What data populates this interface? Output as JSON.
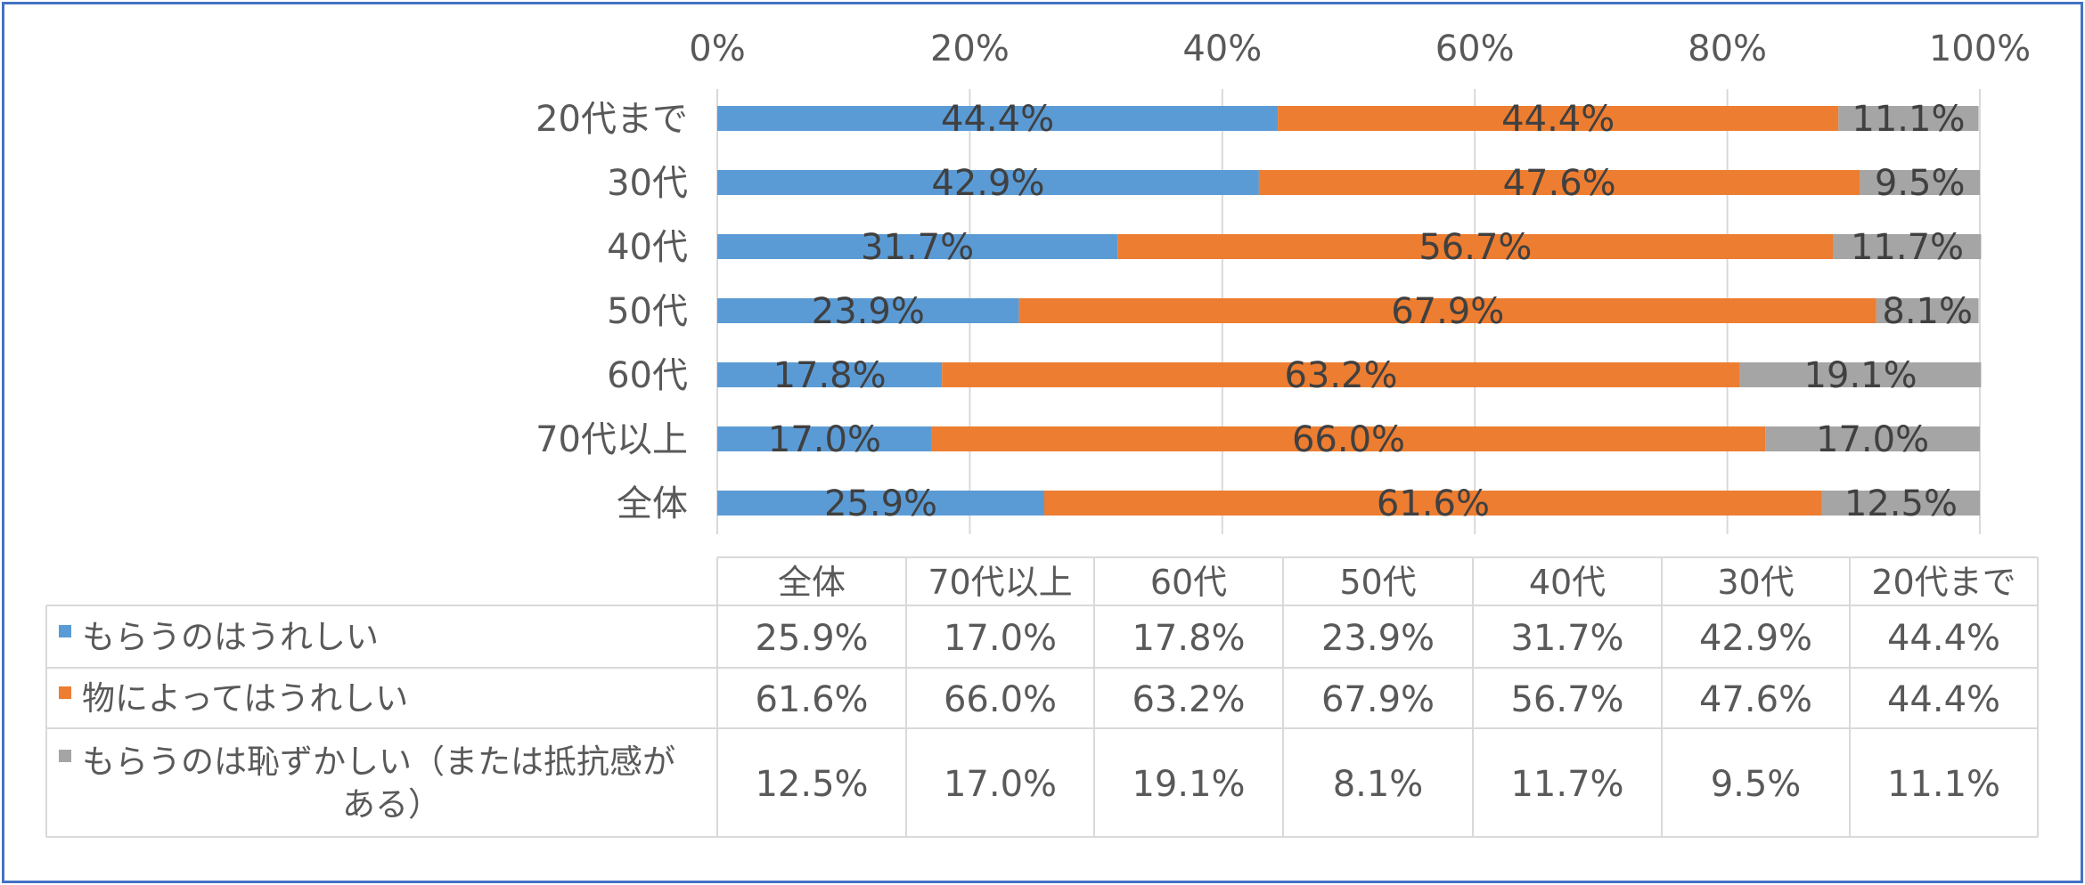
{
  "chart_data": {
    "type": "bar",
    "orientation": "horizontal",
    "stacked": "percent",
    "categories": [
      "20代まで",
      "30代",
      "40代",
      "50代",
      "60代",
      "70代以上",
      "全体"
    ],
    "series": [
      {
        "name": "もらうのはうれしい",
        "color": "#5b9bd5",
        "values": [
          44.4,
          42.9,
          31.7,
          23.9,
          17.8,
          17.0,
          25.9
        ]
      },
      {
        "name": "物によってはうれしい",
        "color": "#ed7d31",
        "values": [
          44.4,
          47.6,
          56.7,
          67.9,
          63.2,
          66.0,
          61.6
        ]
      },
      {
        "name": "もらうのは恥ずかしい（または抵抗感がある）",
        "color": "#a5a5a5",
        "values": [
          11.1,
          9.5,
          11.7,
          8.1,
          19.1,
          17.0,
          12.5
        ]
      }
    ],
    "x_ticks": [
      "0%",
      "20%",
      "40%",
      "60%",
      "80%",
      "100%"
    ],
    "xlim": [
      0,
      100
    ],
    "axis_position": "top",
    "grid": true,
    "data_labels": true,
    "data_table": {
      "columns": [
        "全体",
        "70代以上",
        "60代",
        "50代",
        "40代",
        "30代",
        "20代まで"
      ],
      "rows": [
        {
          "name_lines": [
            "もらうのはうれしい"
          ],
          "values": [
            "25.9%",
            "17.0%",
            "17.8%",
            "23.9%",
            "31.7%",
            "42.9%",
            "44.4%"
          ]
        },
        {
          "name_lines": [
            "物によってはうれしい"
          ],
          "values": [
            "61.6%",
            "66.0%",
            "63.2%",
            "67.9%",
            "56.7%",
            "47.6%",
            "44.4%"
          ]
        },
        {
          "name_lines": [
            "もらうのは恥ずかしい（または抵抗感が",
            "ある）"
          ],
          "values": [
            "12.5%",
            "17.0%",
            "19.1%",
            "8.1%",
            "11.7%",
            "9.5%",
            "11.1%"
          ]
        }
      ]
    }
  }
}
